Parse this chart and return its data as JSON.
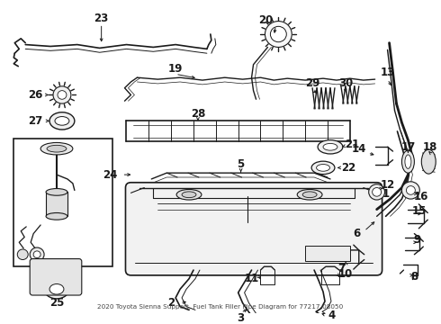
{
  "title": "2020 Toyota Sienna Support, Fuel Tank Filler Pipe Diagram for 77217-08050",
  "bg_color": "#ffffff",
  "line_color": "#1a1a1a",
  "fig_width": 4.9,
  "fig_height": 3.6,
  "dpi": 100
}
